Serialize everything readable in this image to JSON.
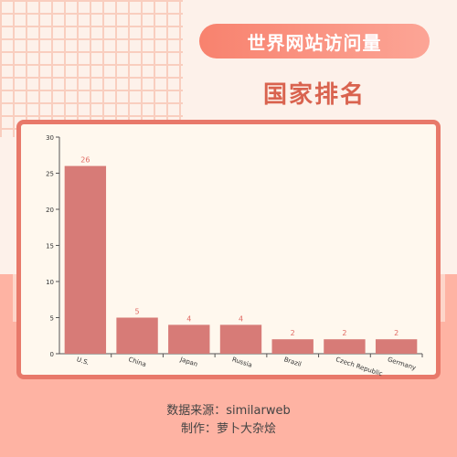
{
  "header": {
    "title": "世界网站访问量",
    "subtitle": "国家排名"
  },
  "footer": {
    "source": "数据来源：similarweb",
    "author": "制作：萝卜大杂烩"
  },
  "colors": {
    "bar": "#d77b77",
    "label": "#e06b64",
    "accent": "#e8796a"
  },
  "chart_data": {
    "type": "bar",
    "categories": [
      "U.S.",
      "China",
      "Japan",
      "Russia",
      "Brazil",
      "Czech Republic",
      "Germany"
    ],
    "values": [
      26,
      5,
      4,
      4,
      2,
      2,
      2
    ],
    "title": "",
    "xlabel": "",
    "ylabel": "",
    "ylim": [
      0,
      30
    ],
    "yticks": [
      0,
      5,
      10,
      15,
      20,
      25,
      30
    ],
    "grid": false,
    "legend": "none"
  }
}
